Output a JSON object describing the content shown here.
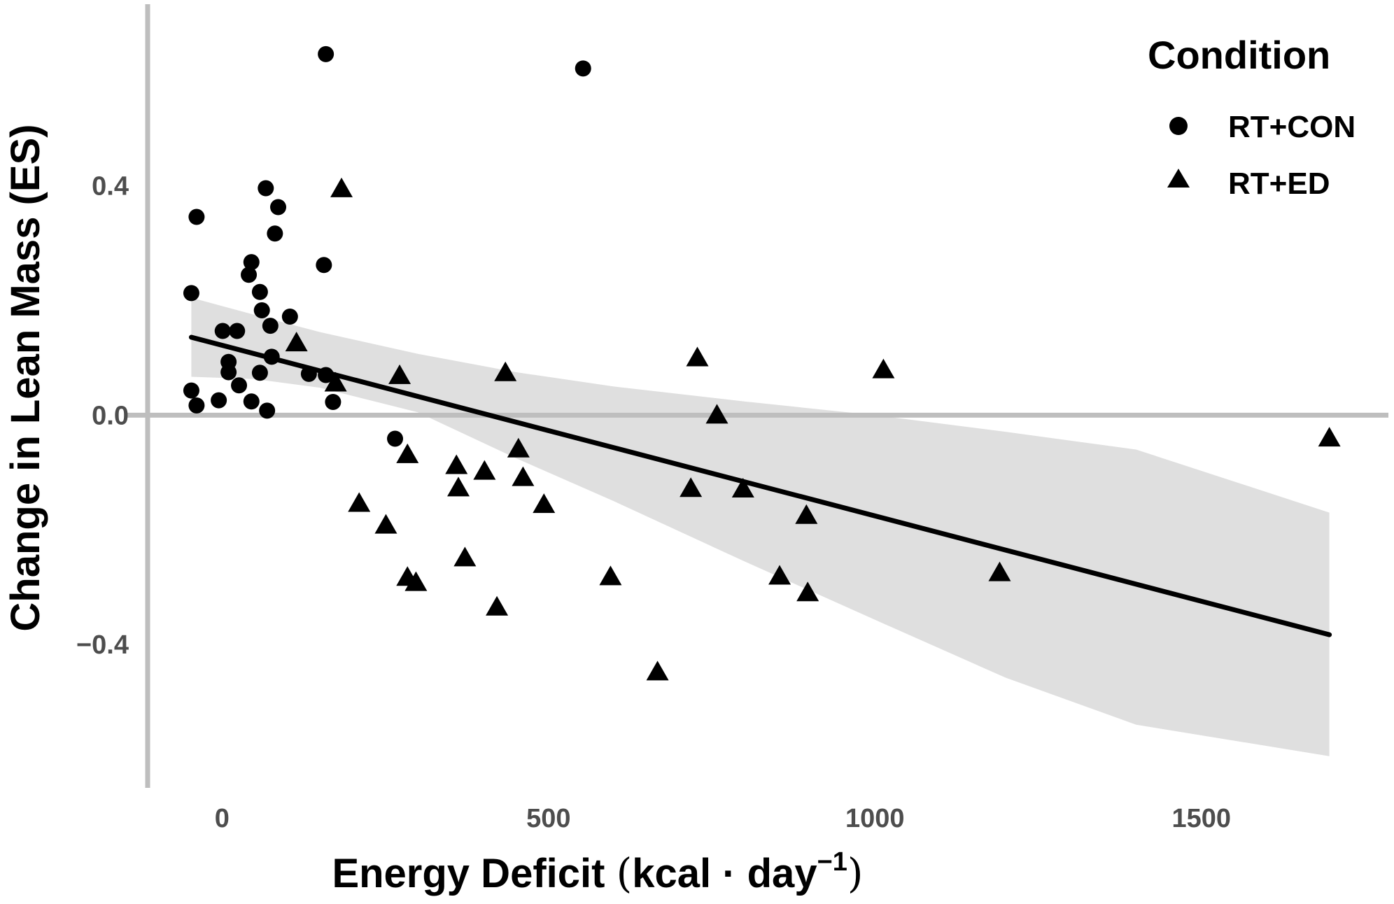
{
  "chart_data": {
    "type": "scatter",
    "xlabel": {
      "main": "Energy Deficit ",
      "open": "(",
      "unit": "kcal · day",
      "sup": "−1",
      "close": ")"
    },
    "ylabel": "Change in Lean Mass (ES)",
    "xlim": [
      -130,
      1780
    ],
    "ylim": [
      -0.66,
      0.7
    ],
    "x_ticks": [
      0,
      500,
      1000,
      1500
    ],
    "x_tick_labels": [
      "0",
      "500",
      "1000",
      "1500"
    ],
    "y_ticks": [
      -0.4,
      0.0,
      0.4
    ],
    "y_tick_labels": [
      "−0.4",
      "0.0",
      "0.4"
    ],
    "grid": false,
    "legend": {
      "title": "Condition",
      "position": "top-right"
    },
    "reference_lines": {
      "x": 0,
      "y": 0
    },
    "colors": {
      "points": "#000000",
      "fit": "#000000",
      "ribbon": "#d9d9d9",
      "axis_lines": "#bebebe"
    },
    "series": [
      {
        "name": "RT+CON",
        "marker": "circle",
        "points": [
          [
            -47,
            0.213
          ],
          [
            -47,
            0.043
          ],
          [
            -39,
            0.346
          ],
          [
            -39,
            0.017
          ],
          [
            -5,
            0.026
          ],
          [
            1,
            0.147
          ],
          [
            10,
            0.093
          ],
          [
            10,
            0.075
          ],
          [
            23,
            0.147
          ],
          [
            26,
            0.052
          ],
          [
            41,
            0.245
          ],
          [
            45,
            0.267
          ],
          [
            45,
            0.024
          ],
          [
            58,
            0.215
          ],
          [
            58,
            0.074
          ],
          [
            61,
            0.183
          ],
          [
            67,
            0.396
          ],
          [
            69,
            0.008
          ],
          [
            74,
            0.156
          ],
          [
            76,
            0.102
          ],
          [
            81,
            0.317
          ],
          [
            86,
            0.363
          ],
          [
            104,
            0.172
          ],
          [
            133,
            0.072
          ],
          [
            156,
            0.262
          ],
          [
            159,
            0.07
          ],
          [
            159,
            0.63
          ],
          [
            170,
            0.023
          ],
          [
            265,
            -0.041
          ],
          [
            553,
            0.605
          ]
        ]
      },
      {
        "name": "RT+ED",
        "marker": "triangle",
        "points": [
          [
            114,
            0.126
          ],
          [
            174,
            0.056
          ],
          [
            183,
            0.395
          ],
          [
            210,
            -0.154
          ],
          [
            251,
            -0.192
          ],
          [
            272,
            0.069
          ],
          [
            284,
            -0.069
          ],
          [
            284,
            -0.283
          ],
          [
            297,
            -0.292
          ],
          [
            359,
            -0.088
          ],
          [
            362,
            -0.127
          ],
          [
            372,
            -0.249
          ],
          [
            402,
            -0.098
          ],
          [
            421,
            -0.335
          ],
          [
            434,
            0.074
          ],
          [
            454,
            -0.059
          ],
          [
            461,
            -0.109
          ],
          [
            493,
            -0.156
          ],
          [
            595,
            -0.282
          ],
          [
            667,
            -0.448
          ],
          [
            718,
            -0.128
          ],
          [
            728,
            0.1
          ],
          [
            758,
            0.0
          ],
          [
            798,
            -0.129
          ],
          [
            854,
            -0.281
          ],
          [
            895,
            -0.175
          ],
          [
            897,
            -0.31
          ],
          [
            1013,
            0.079
          ],
          [
            1191,
            -0.275
          ],
          [
            1696,
            -0.04
          ]
        ]
      }
    ],
    "fit_line": {
      "x": [
        -47,
        1696
      ],
      "y": [
        0.136,
        -0.383
      ]
    },
    "confidence_band": {
      "x": [
        -47,
        50,
        150,
        300,
        450,
        600,
        800,
        1000,
        1200,
        1400,
        1696
      ],
      "upper": [
        0.205,
        0.175,
        0.145,
        0.107,
        0.075,
        0.05,
        0.024,
        0.0,
        -0.029,
        -0.06,
        -0.17
      ],
      "lower": [
        0.067,
        0.063,
        0.048,
        0.005,
        -0.075,
        -0.15,
        -0.255,
        -0.357,
        -0.458,
        -0.54,
        -0.595
      ]
    }
  }
}
